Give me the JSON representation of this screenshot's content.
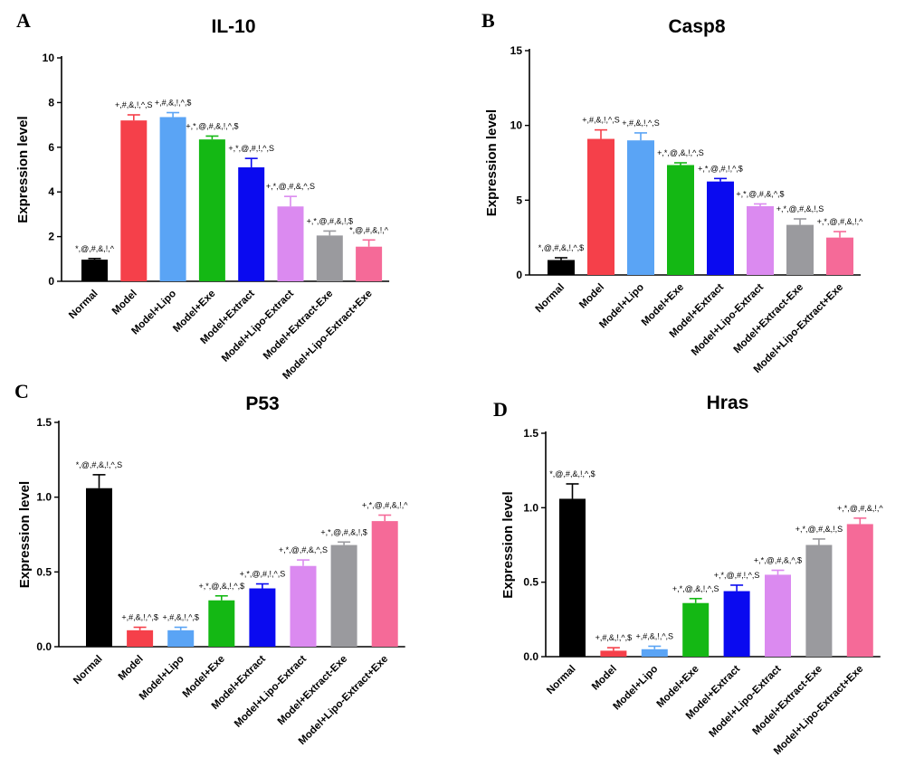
{
  "colors": {
    "Normal": "#000000",
    "Model": "#f5404a",
    "Model+Lipo": "#5aa4f5",
    "Model+Exe": "#14b814",
    "Model+Extract": "#0a0af0",
    "Model+Lipo-Extract": "#db8af0",
    "Model+Extract-Exe": "#9a9a9e",
    "Model+Lipo-Extract+Exe": "#f56a98"
  },
  "chart_data": [
    {
      "panel": "A",
      "type": "bar",
      "title": "IL-10",
      "xlabel": "",
      "ylabel": "Expression level",
      "ylim": [
        0,
        10
      ],
      "yticks": [
        "0",
        "2",
        "4",
        "6",
        "8",
        "10"
      ],
      "categories": [
        "Normal",
        "Model",
        "Model+Lipo",
        "Model+Exe",
        "Model+Extract",
        "Model+Lipo-Extract",
        "Model+Extract-Exe",
        "Model+Lipo-Extract+Exe"
      ],
      "values": [
        0.97,
        7.2,
        7.35,
        6.35,
        5.1,
        3.35,
        2.05,
        1.55
      ],
      "errors": [
        0.05,
        0.25,
        0.2,
        0.15,
        0.4,
        0.45,
        0.2,
        0.3
      ],
      "annotations": [
        "*,@,#,&,!,^",
        "+,#,&,!,^,S",
        "+,#,&,!,^,$",
        "+,*,@,#,&,!,^,$",
        "+,*,@,#,!,^,S",
        "+,*,@,#,&,^,S",
        "+,*,@,#,&,!,$",
        "*,@,#,&,!,^"
      ]
    },
    {
      "panel": "B",
      "type": "bar",
      "title": "Casp8",
      "xlabel": "",
      "ylabel": "Expression level",
      "ylim": [
        0,
        15
      ],
      "yticks": [
        "0",
        "5",
        "10",
        "15"
      ],
      "categories": [
        "Normal",
        "Model",
        "Model+Lipo",
        "Model+Exe",
        "Model+Extract",
        "Model+Lipo-Extract",
        "Model+Extract-Exe",
        "Model+Lipo-Extract+Exe"
      ],
      "values": [
        1.0,
        9.1,
        9.0,
        7.35,
        6.25,
        4.6,
        3.35,
        2.5
      ],
      "errors": [
        0.15,
        0.6,
        0.5,
        0.15,
        0.2,
        0.15,
        0.4,
        0.4
      ],
      "annotations": [
        "*,@,#,&,!,^,$",
        "+,#,&,!,^,S",
        "+,#,&,!,^,S",
        "+,*,@,&,!,^,S",
        "+,*,@,#,!,^,$",
        "+,*,@,#,&,^,$",
        "+,*,@,#,&,!,S",
        "+,*,@,#,&,!,^"
      ]
    },
    {
      "panel": "C",
      "type": "bar",
      "title": "P53",
      "xlabel": "",
      "ylabel": "Expression level",
      "ylim": [
        0,
        1.5
      ],
      "yticks": [
        "0.0",
        "0.5",
        "1.0",
        "1.5"
      ],
      "categories": [
        "Normal",
        "Model",
        "Model+Lipo",
        "Model+Exe",
        "Model+Extract",
        "Model+Lipo-Extract",
        "Model+Extract-Exe",
        "Model+Lipo-Extract+Exe"
      ],
      "values": [
        1.06,
        0.11,
        0.11,
        0.31,
        0.39,
        0.54,
        0.68,
        0.84
      ],
      "errors": [
        0.09,
        0.02,
        0.02,
        0.03,
        0.03,
        0.04,
        0.02,
        0.04
      ],
      "annotations": [
        "*,@,#,&,!,^,S",
        "+,#,&,!,^,$",
        "+,#,&,!,^,$",
        "+,*,@,&,!,^,$",
        "+,*,@,#,!,^,S",
        "+,*,@,#,&,^,S",
        "+,*,@,#,&,!,$",
        "+,*,@,#,&,!,^"
      ]
    },
    {
      "panel": "D",
      "type": "bar",
      "title": "Hras",
      "xlabel": "",
      "ylabel": "Expression level",
      "ylim": [
        0,
        1.5
      ],
      "yticks": [
        "0.0",
        "0.5",
        "1.0",
        "1.5"
      ],
      "categories": [
        "Normal",
        "Model",
        "Model+Lipo",
        "Model+Exe",
        "Model+Extract",
        "Model+Lipo-Extract",
        "Model+Extract-Exe",
        "Model+Lipo-Extract+Exe"
      ],
      "values": [
        1.06,
        0.04,
        0.05,
        0.36,
        0.44,
        0.55,
        0.75,
        0.89
      ],
      "errors": [
        0.1,
        0.02,
        0.02,
        0.03,
        0.04,
        0.03,
        0.04,
        0.04
      ],
      "annotations": [
        "*,@,#,&,!,^,$",
        "+,#,&,!,^,$",
        "+,#,&,!,^,S",
        "+,*,@,&,!,^,S",
        "+,*,@,#,!,^,S",
        "+,*,@,#,&,^,$",
        "+,*,@,#,&,!,S",
        "+,*,@,#,&,!,^"
      ]
    }
  ]
}
